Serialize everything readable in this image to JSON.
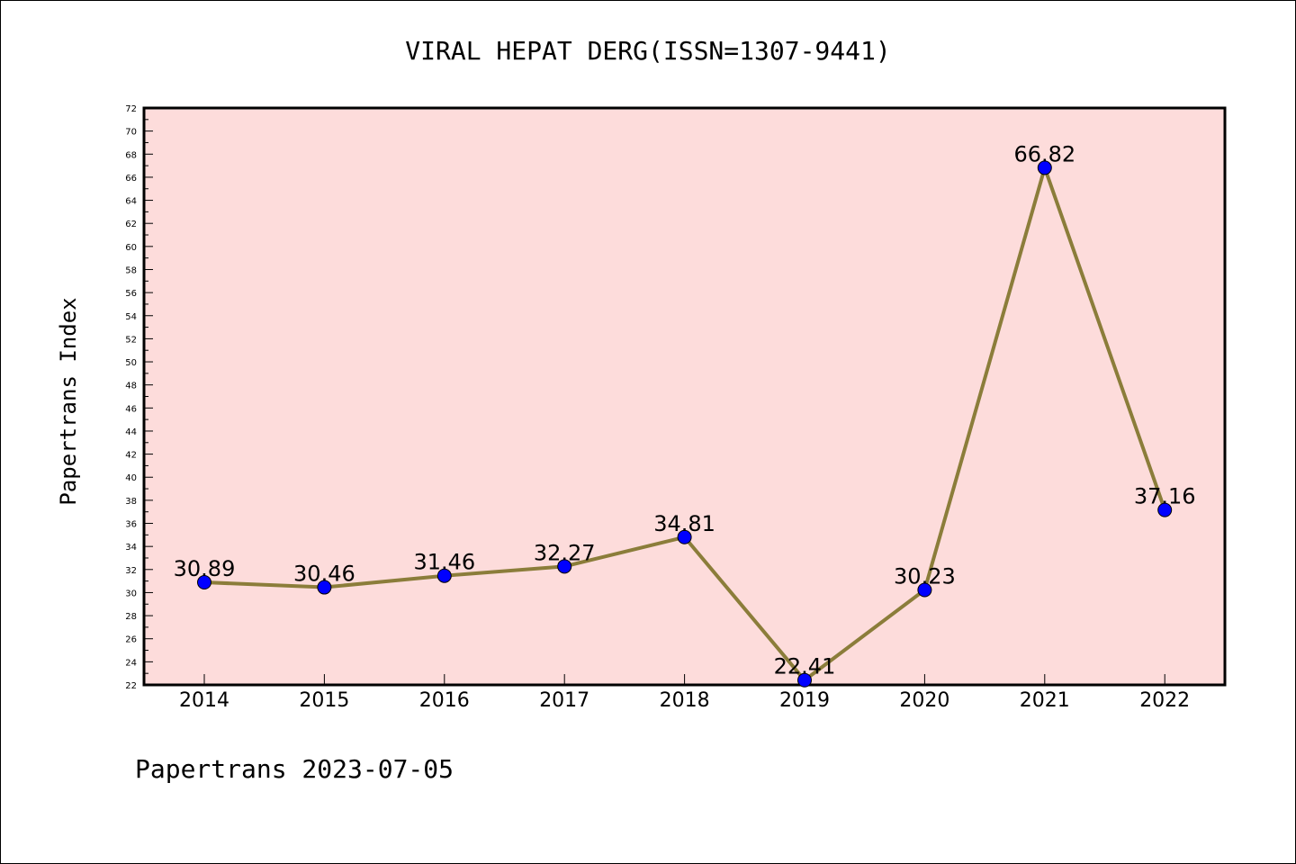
{
  "chart_data": {
    "type": "line",
    "title": "VIRAL HEPAT DERG(ISSN=1307-9441)",
    "ylabel": "Papertrans Index",
    "xlabel": "",
    "footer": "Papertrans 2023-07-05",
    "categories": [
      "2014",
      "2015",
      "2016",
      "2017",
      "2018",
      "2019",
      "2020",
      "2021",
      "2022"
    ],
    "values": [
      30.89,
      30.46,
      31.46,
      32.27,
      34.81,
      22.41,
      30.23,
      66.82,
      37.16
    ],
    "data_labels": [
      "30.89",
      "30.46",
      "31.46",
      "32.27",
      "34.81",
      "22.41",
      "30.23",
      "66.82",
      "37.16"
    ],
    "ylim": [
      22,
      72
    ],
    "ytick_step": 2,
    "grid": false,
    "colors": {
      "plot_background": "#fddcdb",
      "line": "#8b7d3a",
      "marker": "#0000ff",
      "axis": "#000000"
    }
  }
}
